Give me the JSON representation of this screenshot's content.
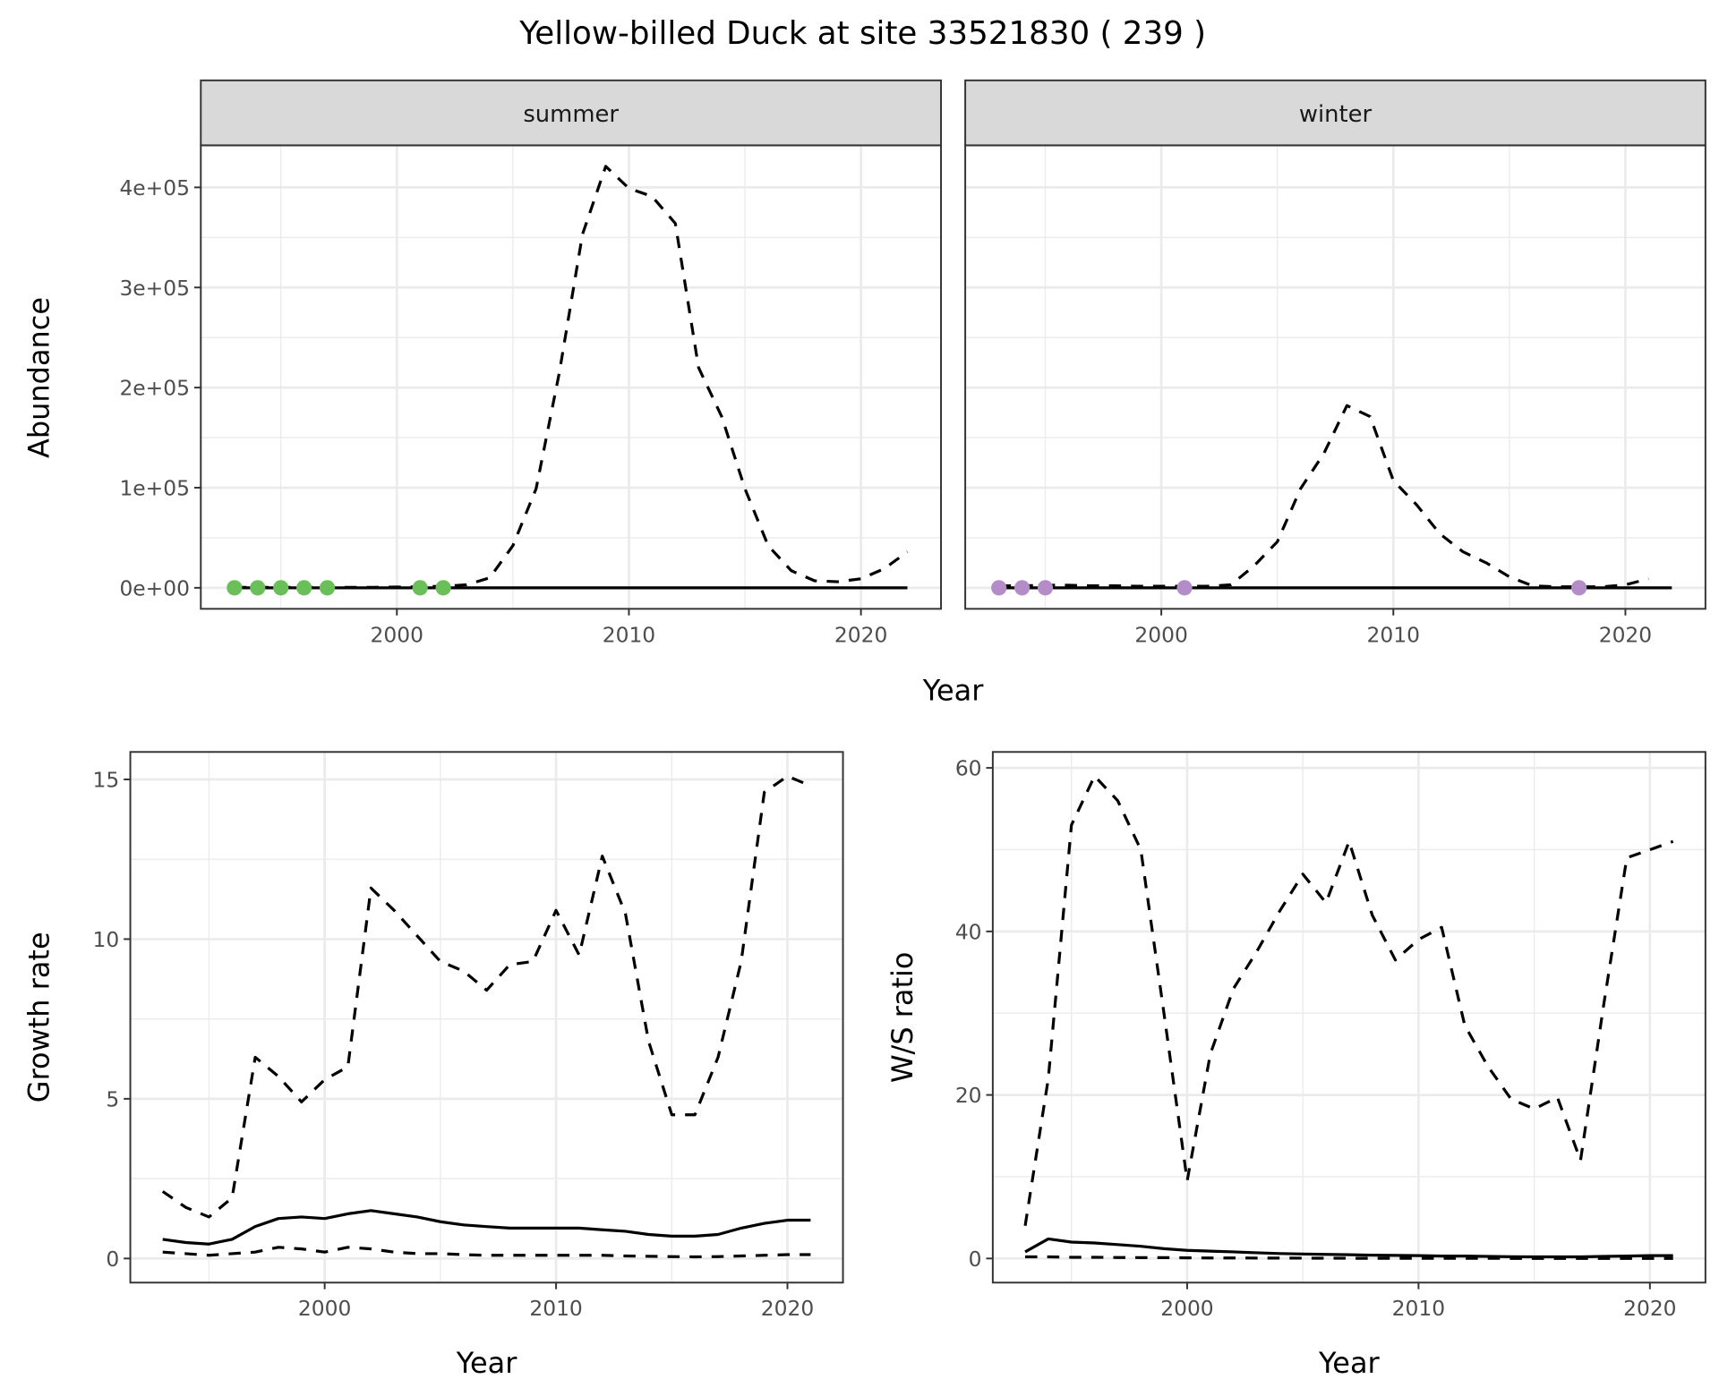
{
  "title": "Yellow-billed Duck at site 33521830 ( 239 )",
  "top_xlabel": "Year",
  "top_ylabel": "Abundance",
  "colors": {
    "summer_points": "#6BBF59",
    "winter_points": "#B48CC8",
    "line": "#000000",
    "grid": "#EBEBEB",
    "strip": "#D9D9D9"
  },
  "chart_data": [
    {
      "type": "line",
      "facet": "summer",
      "xlabel": "Year",
      "ylabel": "Abundance",
      "xlim": [
        1991.55,
        2023.45
      ],
      "ylim": [
        -21000,
        442000
      ],
      "xticks": [
        2000,
        2010,
        2020
      ],
      "xtick_labels": [
        "2000",
        "2010",
        "2020"
      ],
      "yticks": [
        0,
        100000,
        200000,
        300000,
        400000
      ],
      "ytick_labels": [
        "0e+00",
        "1e+05",
        "2e+05",
        "3e+05",
        "4e+05"
      ],
      "x": [
        1993,
        1994,
        1995,
        1996,
        1997,
        1998,
        1999,
        2000,
        2001,
        2002,
        2003,
        2004,
        2005,
        2006,
        2007,
        2008,
        2009,
        2010,
        2011,
        2012,
        2013,
        2014,
        2015,
        2016,
        2017,
        2018,
        2019,
        2020,
        2021,
        2022
      ],
      "series": [
        {
          "name": "estimate-dashed",
          "style": "dashed",
          "values": [
            500,
            500,
            500,
            500,
            500,
            500,
            500,
            800,
            1000,
            1500,
            3000,
            10000,
            42000,
            99000,
            215000,
            353000,
            421000,
            399000,
            391000,
            364000,
            220000,
            171000,
            99000,
            42000,
            17000,
            7000,
            6000,
            9000,
            19000,
            36000
          ]
        },
        {
          "name": "observed-solid",
          "style": "solid",
          "values": [
            0,
            0,
            0,
            0,
            0,
            0,
            0,
            0,
            0,
            0,
            0,
            0,
            0,
            0,
            0,
            0,
            0,
            0,
            0,
            0,
            0,
            0,
            0,
            0,
            0,
            0,
            0,
            0,
            0,
            0
          ]
        }
      ],
      "points": {
        "x": [
          1993,
          1994,
          1995,
          1996,
          1997,
          2001,
          2002
        ],
        "y": [
          0,
          0,
          0,
          0,
          0,
          0,
          0
        ]
      }
    },
    {
      "type": "line",
      "facet": "winter",
      "xlabel": "Year",
      "ylabel": "Abundance",
      "xlim": [
        1991.55,
        2023.45
      ],
      "ylim": [
        -21000,
        442000
      ],
      "xticks": [
        2000,
        2010,
        2020
      ],
      "xtick_labels": [
        "2000",
        "2010",
        "2020"
      ],
      "yticks": [
        0,
        100000,
        200000,
        300000,
        400000
      ],
      "ytick_labels": [],
      "x": [
        1993,
        1994,
        1995,
        1996,
        1997,
        1998,
        1999,
        2000,
        2001,
        2002,
        2003,
        2004,
        2005,
        2006,
        2007,
        2008,
        2009,
        2010,
        2011,
        2012,
        2013,
        2014,
        2015,
        2016,
        2017,
        2018,
        2019,
        2020,
        2021,
        2022
      ],
      "series": [
        {
          "name": "estimate-dashed",
          "style": "dashed",
          "values": [
            2000,
            2000,
            2500,
            2500,
            2000,
            2000,
            1500,
            1500,
            1500,
            1500,
            3000,
            22000,
            46000,
            99000,
            134000,
            182000,
            171000,
            107000,
            83000,
            54000,
            36000,
            25000,
            11000,
            2000,
            1000,
            1000,
            1000,
            3000,
            9000,
            null
          ]
        },
        {
          "name": "observed-solid",
          "style": "solid",
          "values": [
            0,
            0,
            0,
            0,
            0,
            0,
            0,
            0,
            0,
            0,
            0,
            0,
            0,
            0,
            0,
            0,
            0,
            0,
            0,
            0,
            0,
            0,
            0,
            0,
            0,
            0,
            0,
            0,
            0,
            0
          ]
        }
      ],
      "points": {
        "x": [
          1993,
          1994,
          1995,
          2001,
          2018
        ],
        "y": [
          0,
          0,
          0,
          0,
          0
        ]
      }
    },
    {
      "type": "line",
      "xlabel": "Year",
      "ylabel": "Growth rate",
      "xlim": [
        1991.6,
        2022.4
      ],
      "ylim": [
        -0.755,
        15.86
      ],
      "xticks": [
        2000,
        2010,
        2020
      ],
      "xtick_labels": [
        "2000",
        "2010",
        "2020"
      ],
      "yticks": [
        0,
        5,
        10,
        15
      ],
      "ytick_labels": [
        "0",
        "5",
        "10",
        "15"
      ],
      "x": [
        1993,
        1994,
        1995,
        1996,
        1997,
        1998,
        1999,
        2000,
        2001,
        2002,
        2003,
        2004,
        2005,
        2006,
        2007,
        2008,
        2009,
        2010,
        2011,
        2012,
        2013,
        2014,
        2015,
        2016,
        2017,
        2018,
        2019,
        2020,
        2021
      ],
      "series": [
        {
          "name": "upper-dashed",
          "style": "dashed",
          "values": [
            2.1,
            1.6,
            1.3,
            1.9,
            6.3,
            5.7,
            4.9,
            5.6,
            6.0,
            11.6,
            10.9,
            10.1,
            9.3,
            9.0,
            8.4,
            9.2,
            9.3,
            10.9,
            9.5,
            12.6,
            10.8,
            6.8,
            4.5,
            4.5,
            6.3,
            9.3,
            14.6,
            15.1,
            14.8
          ]
        },
        {
          "name": "mean-solid",
          "style": "solid",
          "values": [
            0.6,
            0.5,
            0.45,
            0.6,
            1.0,
            1.25,
            1.3,
            1.25,
            1.4,
            1.5,
            1.4,
            1.3,
            1.15,
            1.05,
            1.0,
            0.95,
            0.95,
            0.95,
            0.95,
            0.9,
            0.85,
            0.75,
            0.7,
            0.7,
            0.75,
            0.95,
            1.1,
            1.2,
            1.2
          ]
        },
        {
          "name": "lower-dashed",
          "style": "dashed",
          "values": [
            0.2,
            0.15,
            0.1,
            0.15,
            0.2,
            0.35,
            0.3,
            0.2,
            0.35,
            0.3,
            0.2,
            0.15,
            0.15,
            0.12,
            0.1,
            0.1,
            0.1,
            0.1,
            0.1,
            0.1,
            0.08,
            0.07,
            0.06,
            0.05,
            0.06,
            0.08,
            0.1,
            0.12,
            0.12
          ]
        }
      ]
    },
    {
      "type": "line",
      "xlabel": "Year",
      "ylabel": "W/S ratio",
      "xlim": [
        1991.6,
        2022.4
      ],
      "ylim": [
        -2.95,
        61.95
      ],
      "xticks": [
        2000,
        2010,
        2020
      ],
      "xtick_labels": [
        "2000",
        "2010",
        "2020"
      ],
      "yticks": [
        0,
        20,
        40,
        60
      ],
      "ytick_labels": [
        "0",
        "20",
        "40",
        "60"
      ],
      "x": [
        1993,
        1994,
        1995,
        1996,
        1997,
        1998,
        1999,
        2000,
        2001,
        2002,
        2003,
        2004,
        2005,
        2006,
        2007,
        2008,
        2009,
        2010,
        2011,
        2012,
        2013,
        2014,
        2015,
        2016,
        2017,
        2018,
        2019,
        2020,
        2021
      ],
      "series": [
        {
          "name": "upper-dashed",
          "style": "dashed",
          "values": [
            4,
            22,
            53,
            59,
            56,
            50,
            30,
            9.5,
            25,
            33,
            37.5,
            42.5,
            47,
            43.5,
            51,
            42,
            36.5,
            39,
            40.5,
            28.5,
            23.5,
            19.5,
            18.3,
            19.7,
            12,
            31,
            49,
            50,
            51
          ]
        },
        {
          "name": "mean-solid",
          "style": "solid",
          "values": [
            0.8,
            2.4,
            2.0,
            1.9,
            1.7,
            1.5,
            1.2,
            1.0,
            0.9,
            0.8,
            0.7,
            0.6,
            0.55,
            0.5,
            0.45,
            0.4,
            0.38,
            0.35,
            0.3,
            0.3,
            0.25,
            0.22,
            0.2,
            0.2,
            0.2,
            0.25,
            0.3,
            0.35,
            0.35
          ]
        },
        {
          "name": "lower-dashed",
          "style": "dashed",
          "values": [
            0.2,
            0.2,
            0.15,
            0.15,
            0.12,
            0.1,
            0.1,
            0.08,
            0.07,
            0.06,
            0.05,
            0.05,
            0.04,
            0.04,
            0.03,
            0.03,
            0.03,
            0.02,
            0.02,
            0.02,
            0.02,
            0.01,
            0.01,
            0.01,
            0.01,
            0.01,
            0.01,
            0.01,
            0.01
          ]
        }
      ]
    }
  ]
}
